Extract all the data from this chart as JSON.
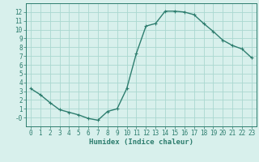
{
  "x": [
    0,
    1,
    2,
    3,
    4,
    5,
    6,
    7,
    8,
    9,
    10,
    11,
    12,
    13,
    14,
    15,
    16,
    17,
    18,
    19,
    20,
    21,
    22,
    23
  ],
  "y": [
    3.3,
    2.6,
    1.7,
    0.9,
    0.6,
    0.3,
    -0.1,
    -0.3,
    0.7,
    1.0,
    3.3,
    7.3,
    10.4,
    10.7,
    12.1,
    12.1,
    12.0,
    11.7,
    10.7,
    9.8,
    8.8,
    8.2,
    7.8,
    6.8
  ],
  "line_color": "#2d7d6e",
  "marker": "+",
  "marker_size": 3,
  "background_color": "#d8f0ec",
  "grid_color": "#aad8d0",
  "xlabel": "Humidex (Indice chaleur)",
  "xlim": [
    -0.5,
    23.5
  ],
  "ylim": [
    -1,
    13
  ],
  "xticks": [
    0,
    1,
    2,
    3,
    4,
    5,
    6,
    7,
    8,
    9,
    10,
    11,
    12,
    13,
    14,
    15,
    16,
    17,
    18,
    19,
    20,
    21,
    22,
    23
  ],
  "yticks": [
    0,
    1,
    2,
    3,
    4,
    5,
    6,
    7,
    8,
    9,
    10,
    11,
    12
  ],
  "ytick_labels": [
    "-0",
    "1",
    "2",
    "3",
    "4",
    "5",
    "6",
    "7",
    "8",
    "9",
    "10",
    "11",
    "12"
  ],
  "xlabel_fontsize": 6.5,
  "tick_fontsize": 5.5,
  "line_width": 1.0
}
